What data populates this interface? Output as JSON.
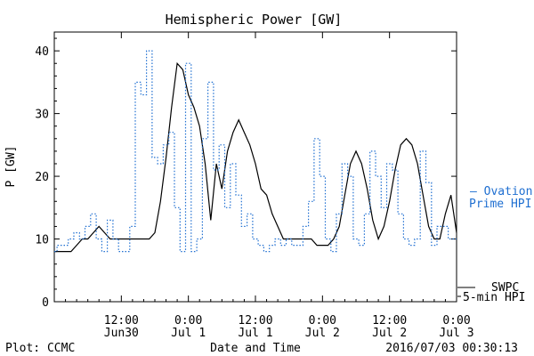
{
  "chart_data": {
    "type": "line",
    "title": "Hemispheric Power [GW]",
    "ylabel": "P [GW]",
    "xlabel": "Date and Time",
    "ylim": [
      0,
      43
    ],
    "yticks": [
      0,
      10,
      20,
      30,
      40
    ],
    "xlim": [
      0,
      72
    ],
    "xticks": [
      {
        "x": 0,
        "line1": "",
        "line2": ""
      },
      {
        "x": 12,
        "line1": "12:00",
        "line2": "Jun30"
      },
      {
        "x": 24,
        "line1": "0:00",
        "line2": "Jul 1"
      },
      {
        "x": 36,
        "line1": "12:00",
        "line2": "Jul 1"
      },
      {
        "x": 48,
        "line1": "0:00",
        "line2": "Jul 2"
      },
      {
        "x": 60,
        "line1": "12:00",
        "line2": "Jul 2"
      },
      {
        "x": 72,
        "line1": "0:00",
        "line2": "Jul 3"
      }
    ],
    "grid": false,
    "series": [
      {
        "name": "SWPC 5-min HPI",
        "color": "#000000",
        "style": "solid",
        "x": [
          0,
          1,
          2,
          3,
          4,
          5,
          6,
          7,
          8,
          9,
          10,
          11,
          12,
          13,
          14,
          15,
          16,
          17,
          18,
          19,
          20,
          21,
          22,
          23,
          24,
          25,
          26,
          27,
          28,
          29,
          30,
          31,
          32,
          33,
          34,
          35,
          36,
          37,
          38,
          39,
          40,
          41,
          42,
          43,
          44,
          45,
          46,
          47,
          48,
          49,
          50,
          51,
          52,
          53,
          54,
          55,
          56,
          57,
          58,
          59,
          60,
          61,
          62,
          63,
          64,
          65,
          66,
          67,
          68,
          69,
          70,
          71,
          72
        ],
        "values": [
          8,
          8,
          8,
          8,
          9,
          10,
          10,
          11,
          12,
          11,
          10,
          10,
          10,
          10,
          10,
          10,
          10,
          10,
          11,
          16,
          23,
          31,
          38,
          37,
          33,
          31,
          28,
          22,
          13,
          22,
          18,
          24,
          27,
          29,
          27,
          25,
          22,
          18,
          17,
          14,
          12,
          10,
          10,
          10,
          10,
          10,
          10,
          9,
          9,
          9,
          10,
          12,
          17,
          22,
          24,
          22,
          18,
          13,
          10,
          12,
          16,
          21,
          25,
          26,
          25,
          22,
          17,
          12,
          10,
          10,
          14,
          17,
          11
        ]
      },
      {
        "name": "Ovation Prime HPI",
        "color": "#1f6fd1",
        "style": "dotted",
        "x": [
          0,
          1,
          2,
          3,
          4,
          5,
          6,
          7,
          8,
          9,
          10,
          11,
          12,
          13,
          14,
          15,
          16,
          17,
          18,
          19,
          20,
          21,
          22,
          23,
          24,
          25,
          26,
          27,
          28,
          29,
          30,
          31,
          32,
          33,
          34,
          35,
          36,
          37,
          38,
          39,
          40,
          41,
          42,
          43,
          44,
          45,
          46,
          47,
          48,
          49,
          50,
          51,
          52,
          53,
          54,
          55,
          56,
          57,
          58,
          59,
          60,
          61,
          62,
          63,
          64,
          65,
          66,
          67,
          68,
          69,
          70,
          71,
          72
        ],
        "values": [
          8,
          9,
          9,
          10,
          11,
          10,
          12,
          14,
          10,
          8,
          13,
          10,
          8,
          8,
          12,
          35,
          33,
          40,
          23,
          22,
          25,
          27,
          15,
          8,
          38,
          8,
          10,
          26,
          35,
          21,
          25,
          15,
          22,
          17,
          12,
          14,
          10,
          9,
          8,
          9,
          10,
          9,
          10,
          9,
          9,
          12,
          16,
          26,
          20,
          10,
          8,
          14,
          22,
          20,
          10,
          9,
          14,
          24,
          20,
          15,
          22,
          21,
          14,
          10,
          9,
          10,
          24,
          19,
          9,
          12,
          12,
          10,
          10
        ]
      }
    ],
    "legend": [
      {
        "line1": "– Ovation",
        "line2": "Prime HPI",
        "color": "#1f6fd1"
      },
      {
        "line1": "SWPC",
        "line2": "5-min HPI",
        "color": "#000000"
      }
    ],
    "footer": {
      "left": "Plot: CCMC",
      "center": "Date and Time",
      "right": "2016/07/03 00:30:13"
    }
  }
}
